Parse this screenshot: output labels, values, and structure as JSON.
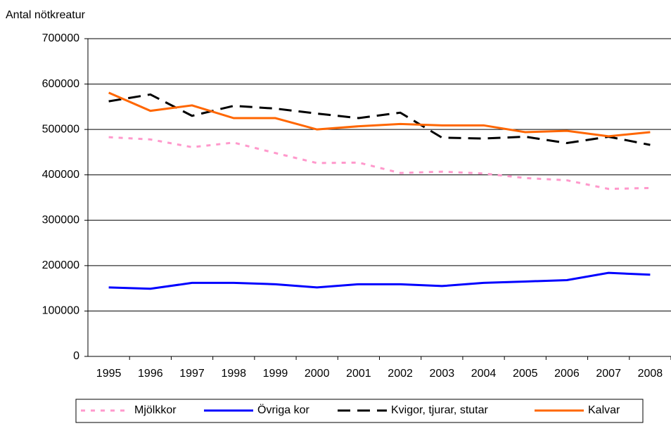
{
  "chart_data": {
    "type": "line",
    "y_label": "Antal nötkreatur",
    "categories": [
      "1995",
      "1996",
      "1997",
      "1998",
      "1999",
      "2000",
      "2001",
      "2002",
      "2003",
      "2004",
      "2005",
      "2006",
      "2007",
      "2008"
    ],
    "series": [
      {
        "name": "Mjölkkor",
        "color": "#ff99cc",
        "style": "dotted",
        "values": [
          483000,
          478000,
          461000,
          471000,
          448000,
          426000,
          427000,
          404000,
          407000,
          403000,
          393000,
          388000,
          369000,
          371000
        ]
      },
      {
        "name": "Övriga kor",
        "color": "#0000ff",
        "style": "solid",
        "values": [
          152000,
          149000,
          162000,
          162000,
          159000,
          152000,
          159000,
          159000,
          155000,
          162000,
          165000,
          168000,
          184000,
          180000
        ]
      },
      {
        "name": "Kvigor, tjurar, stutar",
        "color": "#000000",
        "style": "dashed",
        "values": [
          562000,
          577000,
          530000,
          552000,
          546000,
          535000,
          525000,
          537000,
          482000,
          480000,
          484000,
          470000,
          484000,
          466000
        ]
      },
      {
        "name": "Kalvar",
        "color": "#ff6600",
        "style": "solid",
        "values": [
          581000,
          541000,
          553000,
          525000,
          525000,
          500000,
          507000,
          512000,
          509000,
          509000,
          494000,
          497000,
          485000,
          494000
        ]
      }
    ],
    "ylim": [
      0,
      700000
    ],
    "yticks": [
      0,
      100000,
      200000,
      300000,
      400000,
      500000,
      600000,
      700000
    ],
    "grid": true,
    "legend": "bottom"
  }
}
